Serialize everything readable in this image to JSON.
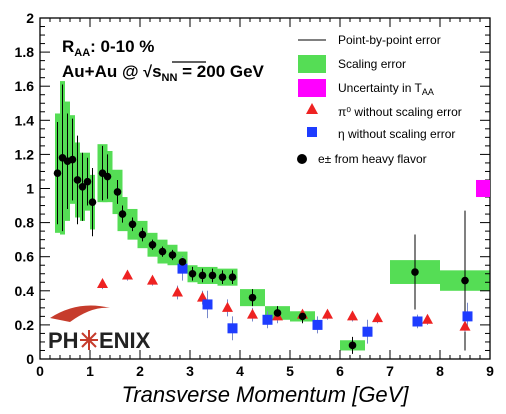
{
  "chart_data": {
    "type": "scatter",
    "xlabel": "Transverse Momentum [GeV]",
    "ylabel": "",
    "xlim": [
      0,
      9
    ],
    "ylim": [
      0,
      2
    ],
    "x_ticks": [
      "0",
      "1",
      "2",
      "3",
      "4",
      "5",
      "6",
      "7",
      "8",
      "9"
    ],
    "y_ticks": [
      "0",
      "0.2",
      "0.4",
      "0.6",
      "0.8",
      "1",
      "1.2",
      "1.4",
      "1.6",
      "1.8",
      "2"
    ],
    "annotation_title": "R",
    "annotation_title_sub": "AA",
    "annotation_title_rest": ": 0-10 %",
    "annotation_system": "Au+Au @ ",
    "annotation_energy_symbol": "s",
    "annotation_energy_sub": "NN",
    "annotation_energy_rest": " = 200 GeV",
    "legend": {
      "line": "Point-by-point error",
      "scaling": "Scaling error",
      "uncertainty_prefix": "Uncertainty in T",
      "uncertainty_sub": "AA",
      "pi0": "π⁰ without scaling error",
      "eta": "η without scaling error",
      "heavy": "e± from heavy flavor"
    },
    "brand": "PH",
    "brand_end": "ENIX",
    "colors": {
      "band": "#55dd55",
      "uncert": "#ff00ff",
      "pi0": "#ee2222",
      "eta": "#1e3cff",
      "heavy": "#000000",
      "err": "#7788cc"
    },
    "uncertainty_band": {
      "x": [
        8.72,
        9.0
      ],
      "y": [
        0.95,
        1.05
      ]
    },
    "series": [
      {
        "name": "e± from heavy flavor",
        "marker": "circle",
        "points": [
          {
            "x": 0.35,
            "y": 1.09,
            "err": 0.3,
            "band": 0.35
          },
          {
            "x": 0.45,
            "y": 1.18,
            "err": 0.43,
            "band": 0.45
          },
          {
            "x": 0.55,
            "y": 1.16,
            "err": 0.28,
            "band": 0.35
          },
          {
            "x": 0.65,
            "y": 1.17,
            "err": 0.24,
            "band": 0.26
          },
          {
            "x": 0.75,
            "y": 1.05,
            "err": 0.26,
            "band": 0.22
          },
          {
            "x": 0.85,
            "y": 1.01,
            "err": 0.2,
            "band": 0.2
          },
          {
            "x": 0.95,
            "y": 1.04,
            "err": 0.14,
            "band": 0.17
          },
          {
            "x": 1.05,
            "y": 0.92,
            "err": 0.2,
            "band": 0.16
          },
          {
            "x": 1.25,
            "y": 1.09,
            "err": 0.16,
            "band": 0.17
          },
          {
            "x": 1.35,
            "y": 1.07,
            "err": 0.13,
            "band": 0.15
          },
          {
            "x": 1.55,
            "y": 0.98,
            "err": 0.07,
            "band": 0.13
          },
          {
            "x": 1.65,
            "y": 0.85,
            "err": 0.05,
            "band": 0.1
          },
          {
            "x": 1.85,
            "y": 0.79,
            "err": 0.04,
            "band": 0.09
          },
          {
            "x": 2.05,
            "y": 0.73,
            "err": 0.04,
            "band": 0.08
          },
          {
            "x": 2.25,
            "y": 0.67,
            "err": 0.03,
            "band": 0.07
          },
          {
            "x": 2.45,
            "y": 0.63,
            "err": 0.03,
            "band": 0.07
          },
          {
            "x": 2.65,
            "y": 0.61,
            "err": 0.03,
            "band": 0.06
          },
          {
            "x": 2.85,
            "y": 0.57,
            "err": 0.03,
            "band": 0.06
          },
          {
            "x": 3.05,
            "y": 0.5,
            "err": 0.04,
            "band": 0.05
          },
          {
            "x": 3.25,
            "y": 0.49,
            "err": 0.04,
            "band": 0.05
          },
          {
            "x": 3.45,
            "y": 0.49,
            "err": 0.04,
            "band": 0.05
          },
          {
            "x": 3.65,
            "y": 0.48,
            "err": 0.04,
            "band": 0.05
          },
          {
            "x": 3.85,
            "y": 0.48,
            "err": 0.04,
            "band": 0.05
          },
          {
            "x": 4.25,
            "y": 0.36,
            "err": 0.05,
            "band": 0.05
          },
          {
            "x": 4.75,
            "y": 0.27,
            "err": 0.04,
            "band": 0.04
          },
          {
            "x": 5.25,
            "y": 0.25,
            "err": 0.04,
            "band": 0.03
          },
          {
            "x": 6.25,
            "y": 0.08,
            "err": 0.05,
            "band": 0.03
          },
          {
            "x": 7.5,
            "y": 0.51,
            "err": 0.22,
            "band": 0.07
          },
          {
            "x": 8.5,
            "y": 0.46,
            "err": 0.41,
            "band": 0.06
          }
        ],
        "band_halfwidth": [
          0.05,
          0.05,
          0.05,
          0.05,
          0.05,
          0.05,
          0.05,
          0.05,
          0.1,
          0.1,
          0.1,
          0.1,
          0.1,
          0.1,
          0.1,
          0.1,
          0.1,
          0.1,
          0.1,
          0.1,
          0.1,
          0.1,
          0.1,
          0.25,
          0.25,
          0.25,
          0.25,
          0.5,
          0.5
        ]
      },
      {
        "name": "π⁰ without scaling error",
        "marker": "triangle",
        "points": [
          {
            "x": 1.25,
            "y": 0.44,
            "err": 0.03
          },
          {
            "x": 1.75,
            "y": 0.49,
            "err": 0.03
          },
          {
            "x": 2.25,
            "y": 0.46,
            "err": 0.03
          },
          {
            "x": 2.75,
            "y": 0.39,
            "err": 0.04
          },
          {
            "x": 3.25,
            "y": 0.36,
            "err": 0.04
          },
          {
            "x": 3.75,
            "y": 0.3,
            "err": 0.05
          },
          {
            "x": 4.25,
            "y": 0.26,
            "err": 0.04
          },
          {
            "x": 4.75,
            "y": 0.25,
            "err": 0.04
          },
          {
            "x": 5.25,
            "y": 0.26,
            "err": 0.03
          },
          {
            "x": 5.75,
            "y": 0.26,
            "err": 0.03
          },
          {
            "x": 6.25,
            "y": 0.25,
            "err": 0.03
          },
          {
            "x": 6.75,
            "y": 0.24,
            "err": 0.03
          },
          {
            "x": 7.75,
            "y": 0.23,
            "err": 0.03
          },
          {
            "x": 8.5,
            "y": 0.19,
            "err": 0.03
          }
        ]
      },
      {
        "name": "η without scaling error",
        "marker": "square",
        "points": [
          {
            "x": 2.85,
            "y": 0.53,
            "err": 0.07
          },
          {
            "x": 3.35,
            "y": 0.32,
            "err": 0.08
          },
          {
            "x": 3.85,
            "y": 0.18,
            "err": 0.07
          },
          {
            "x": 4.55,
            "y": 0.23,
            "err": 0.05
          },
          {
            "x": 5.55,
            "y": 0.2,
            "err": 0.05
          },
          {
            "x": 6.55,
            "y": 0.16,
            "err": 0.07
          },
          {
            "x": 7.55,
            "y": 0.22,
            "err": 0.04
          },
          {
            "x": 8.55,
            "y": 0.25,
            "err": 0.08
          }
        ]
      }
    ]
  }
}
